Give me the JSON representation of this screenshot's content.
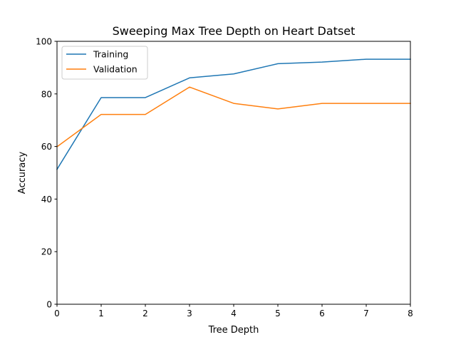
{
  "chart_data": {
    "type": "line",
    "title": "Sweeping Max Tree Depth on Heart Datset",
    "xlabel": "Tree Depth",
    "ylabel": "Accuracy",
    "xlim": [
      0,
      8
    ],
    "ylim": [
      0,
      100
    ],
    "xticks": [
      0,
      1,
      2,
      3,
      4,
      5,
      6,
      7,
      8
    ],
    "yticks": [
      0,
      20,
      40,
      60,
      80,
      100
    ],
    "grid": false,
    "legend_position": "top-left",
    "x": [
      0,
      1,
      2,
      3,
      4,
      5,
      6,
      7,
      8
    ],
    "series": [
      {
        "name": "Training",
        "color": "#1f77b4",
        "values": [
          51.3,
          78.6,
          78.6,
          86.1,
          87.6,
          91.5,
          92.1,
          93.2,
          93.2
        ]
      },
      {
        "name": "Validation",
        "color": "#ff7f0e",
        "values": [
          59.9,
          72.2,
          72.2,
          82.6,
          76.4,
          74.3,
          76.4,
          76.4,
          76.4
        ]
      }
    ]
  }
}
